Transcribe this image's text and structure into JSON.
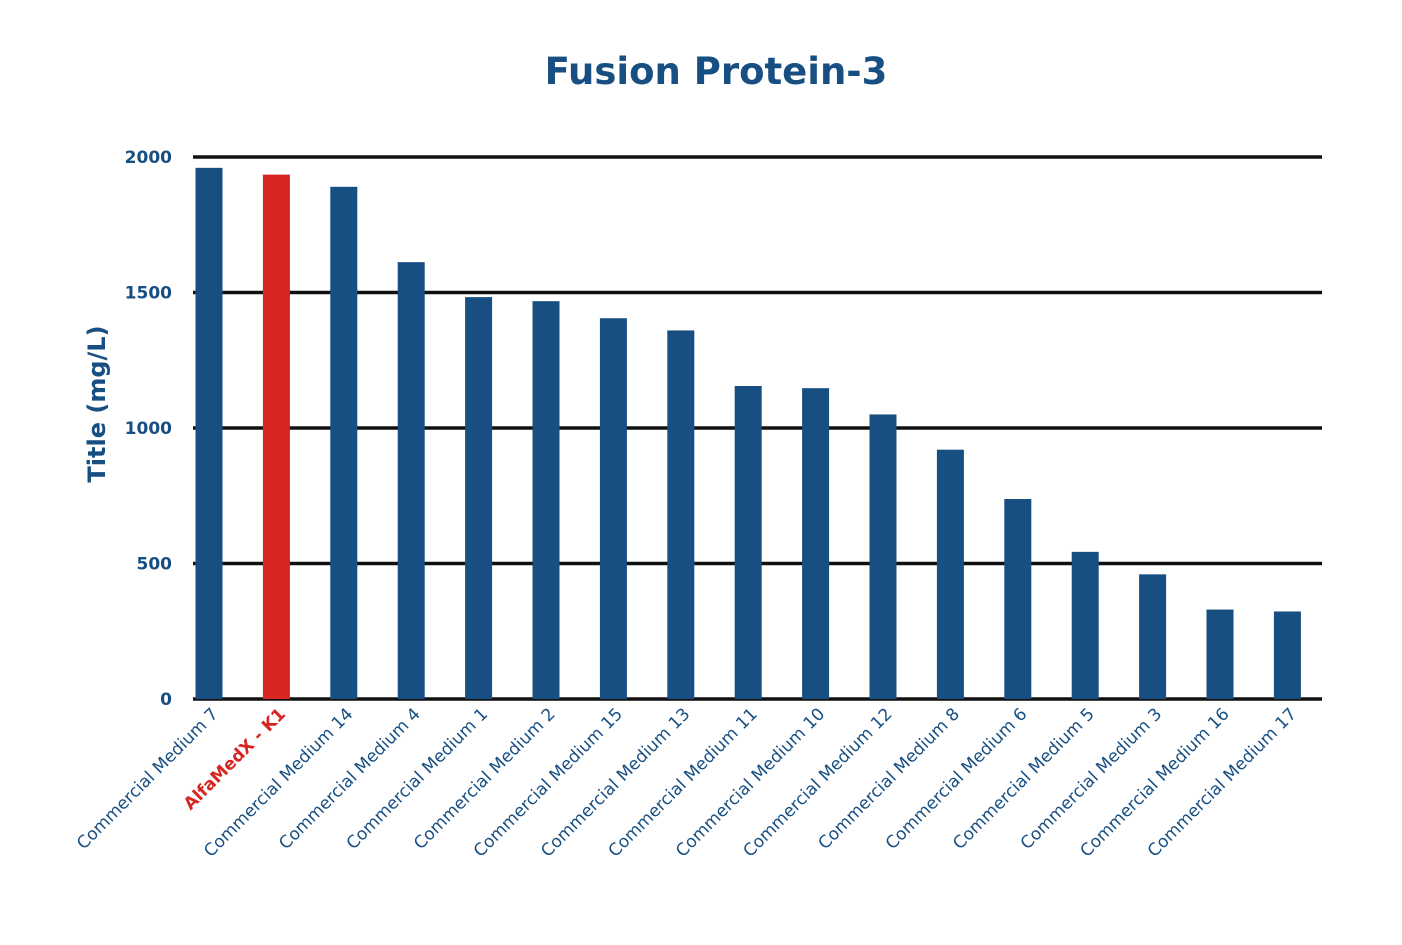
{
  "colors": {
    "primary": "#174f82",
    "highlight": "#d72521",
    "grid": "#111111",
    "background": "#ffffff"
  },
  "chart_data": {
    "type": "bar",
    "title": "Fusion Protein-3",
    "xlabel": "",
    "ylabel": "Title (mg/L)",
    "ylim": [
      0,
      2000
    ],
    "yticks": [
      0,
      500,
      1000,
      1500,
      2000
    ],
    "grid": true,
    "legend": "none",
    "categories": [
      "Commercial Medium 7",
      "AlfaMedX - K1",
      "Commercial Medium 14",
      "Commercial Medium 4",
      "Commercial Medium 1",
      "Commercial Medium 2",
      "Commercial Medium 15",
      "Commercial Medium 13",
      "Commercial Medium 11",
      "Commercial Medium 10",
      "Commercial Medium 12",
      "Commercial Medium 8",
      "Commercial Medium 6",
      "Commercial Medium 5",
      "Commercial Medium 3",
      "Commercial Medium 16",
      "Commercial Medium 17"
    ],
    "values": [
      1960,
      1935,
      1890,
      1612,
      1483,
      1468,
      1405,
      1360,
      1155,
      1147,
      1050,
      920,
      738,
      543,
      460,
      330,
      323
    ],
    "highlight_category": "AlfaMedX - K1"
  }
}
